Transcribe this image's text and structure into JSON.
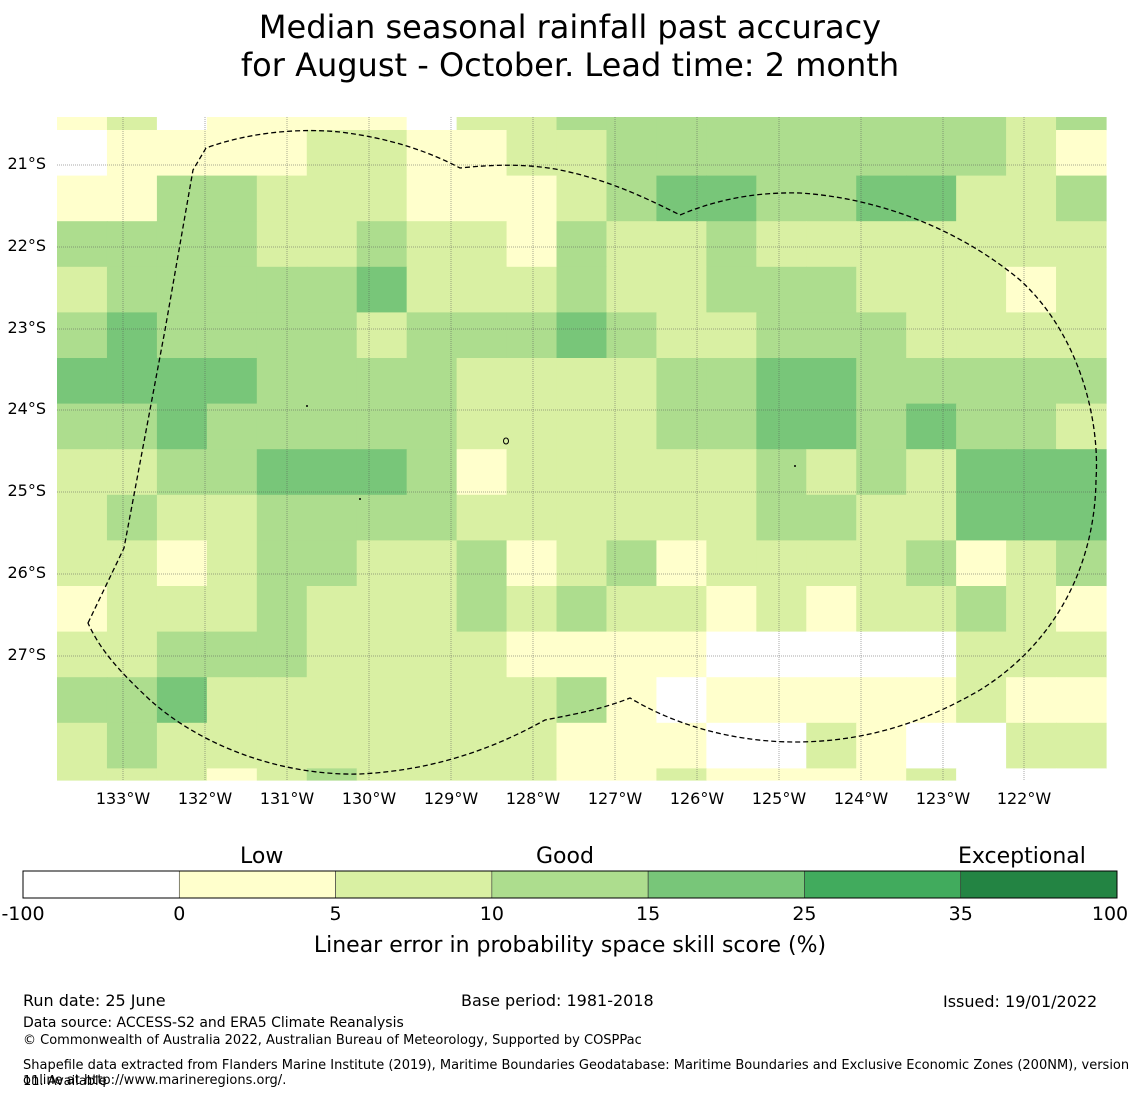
{
  "title": {
    "line1": "Median seasonal rainfall past accuracy",
    "line2": "for August - October. Lead time: 2 month"
  },
  "map": {
    "lat_labels": [
      "21°S",
      "22°S",
      "23°S",
      "24°S",
      "25°S",
      "26°S",
      "27°S"
    ],
    "lon_labels": [
      "133°W",
      "132°W",
      "131°W",
      "130°W",
      "129°W",
      "128°W",
      "127°W",
      "126°W",
      "125°W",
      "124°W",
      "123°W",
      "122°W"
    ],
    "boundary_style": "dashed black line (EEZ boundary)",
    "grid_colors_legend": [
      "#ffffff",
      "#ffffcc",
      "#d9f0a3",
      "#addd8e",
      "#78c679",
      "#41ab5d",
      "#238443"
    ],
    "grid_levels": [
      [
        1,
        2,
        0,
        1,
        1,
        1,
        1,
        0,
        2,
        2,
        3,
        3,
        3,
        3,
        3,
        3,
        3,
        3,
        3,
        2,
        3
      ],
      [
        0,
        1,
        1,
        1,
        1,
        2,
        2,
        1,
        1,
        2,
        2,
        3,
        3,
        3,
        3,
        3,
        3,
        3,
        3,
        2,
        1
      ],
      [
        1,
        1,
        3,
        3,
        2,
        2,
        2,
        1,
        1,
        1,
        2,
        3,
        4,
        4,
        3,
        3,
        4,
        4,
        2,
        2,
        3
      ],
      [
        3,
        3,
        3,
        3,
        2,
        2,
        3,
        2,
        2,
        1,
        3,
        2,
        2,
        3,
        2,
        2,
        2,
        2,
        2,
        2,
        2
      ],
      [
        2,
        3,
        3,
        3,
        3,
        3,
        4,
        2,
        2,
        2,
        3,
        2,
        2,
        3,
        3,
        3,
        2,
        2,
        2,
        1,
        2
      ],
      [
        3,
        4,
        3,
        3,
        3,
        3,
        2,
        3,
        3,
        3,
        4,
        3,
        2,
        2,
        3,
        3,
        3,
        2,
        2,
        2,
        2
      ],
      [
        4,
        4,
        4,
        4,
        3,
        3,
        3,
        3,
        2,
        2,
        2,
        2,
        3,
        3,
        4,
        4,
        3,
        3,
        3,
        3,
        3
      ],
      [
        3,
        3,
        4,
        3,
        3,
        3,
        3,
        3,
        2,
        2,
        2,
        2,
        3,
        3,
        4,
        4,
        3,
        4,
        3,
        3,
        2
      ],
      [
        2,
        2,
        3,
        3,
        4,
        4,
        4,
        3,
        1,
        2,
        2,
        2,
        2,
        2,
        3,
        2,
        3,
        2,
        4,
        4,
        4
      ],
      [
        2,
        3,
        2,
        2,
        3,
        3,
        3,
        3,
        2,
        2,
        2,
        2,
        2,
        2,
        3,
        3,
        2,
        2,
        4,
        4,
        4
      ],
      [
        2,
        2,
        1,
        2,
        3,
        3,
        2,
        2,
        3,
        1,
        2,
        3,
        1,
        2,
        2,
        2,
        2,
        3,
        1,
        2,
        3
      ],
      [
        1,
        2,
        2,
        2,
        3,
        2,
        2,
        2,
        3,
        2,
        3,
        2,
        2,
        1,
        2,
        1,
        2,
        2,
        3,
        2,
        1
      ],
      [
        2,
        2,
        3,
        3,
        3,
        2,
        2,
        2,
        2,
        1,
        1,
        1,
        1,
        0,
        0,
        0,
        0,
        0,
        2,
        2,
        2
      ],
      [
        3,
        3,
        4,
        2,
        2,
        2,
        2,
        2,
        2,
        2,
        3,
        1,
        0,
        1,
        1,
        1,
        1,
        1,
        2,
        1,
        1
      ],
      [
        2,
        3,
        2,
        2,
        2,
        2,
        2,
        2,
        2,
        2,
        1,
        1,
        1,
        0,
        0,
        2,
        1,
        0,
        0,
        2,
        2
      ]
    ],
    "bottom_strip": [
      2,
      2,
      2,
      1,
      2,
      3,
      2,
      2,
      2,
      2,
      1,
      1,
      2,
      1,
      1,
      1,
      1,
      2,
      0,
      0,
      0
    ]
  },
  "colorbar": {
    "categories": [
      "Low",
      "Good",
      "Exceptional"
    ],
    "ticks": [
      "-100",
      "0",
      "5",
      "10",
      "15",
      "25",
      "35",
      "100"
    ],
    "colors": [
      "#ffffff",
      "#ffffcc",
      "#d9f0a3",
      "#addd8e",
      "#78c679",
      "#41ab5d",
      "#238443"
    ],
    "label": "Linear error in probability space skill score (%)"
  },
  "footer": {
    "run_date": "Run date: 25 June",
    "base_period": "Base period: 1981-2018",
    "issued": "Issued: 19/01/2022",
    "data_source": "Data source: ACCESS-S2 and ERA5 Climate Reanalysis",
    "copyright": "© Commonwealth of Australia 2022, Australian Bureau of Meteorology, Supported by COSPPac",
    "shapefile_line1": "Shapefile data extracted from Flanders Marine Institute (2019), Maritime Boundaries Geodatabase: Maritime Boundaries and Exclusive Economic Zones (200NM), version 11. Available",
    "shapefile_line2": "online at http://www.marineregions.org/."
  }
}
